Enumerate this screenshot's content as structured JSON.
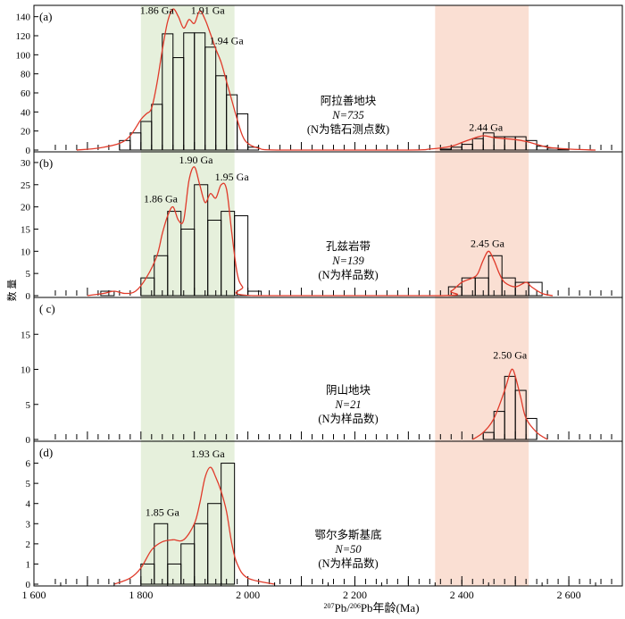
{
  "colors": {
    "green_band": "#e6f0dc",
    "pink_band": "#fadfd3",
    "kde_line": "#e03a2a",
    "bar_edge": "#000000"
  },
  "axes": {
    "xlabel": "207Pb/206Pb年龄(Ma)",
    "xlabel_parts": {
      "sup1": "207",
      "t1": "Pb/",
      "sup2": "206",
      "t2": "Pb年龄(Ma)"
    },
    "ylabel": "数 量",
    "xticks": [
      "1 600",
      "1 800",
      "2 000",
      "2 200",
      "2 400",
      "2 600"
    ]
  },
  "chart_data": [
    {
      "type": "bar",
      "panel": "(a)",
      "region": "阿拉善地块",
      "n_label": "N=735",
      "note": "(N为锆石测点数)",
      "bin_width": 20,
      "xlim": [
        1600,
        2700
      ],
      "ylim": [
        0,
        150
      ],
      "yticks": [
        0,
        20,
        40,
        60,
        80,
        100,
        120,
        140
      ],
      "bins": [
        [
          1760,
          10
        ],
        [
          1780,
          18
        ],
        [
          1800,
          30
        ],
        [
          1820,
          48
        ],
        [
          1840,
          122
        ],
        [
          1860,
          97
        ],
        [
          1880,
          123
        ],
        [
          1900,
          123
        ],
        [
          1920,
          108
        ],
        [
          1940,
          78
        ],
        [
          1960,
          58
        ],
        [
          1980,
          38
        ],
        [
          2000,
          3
        ],
        [
          2360,
          1
        ],
        [
          2380,
          3
        ],
        [
          2400,
          6
        ],
        [
          2420,
          12
        ],
        [
          2440,
          18
        ],
        [
          2460,
          14
        ],
        [
          2480,
          14
        ],
        [
          2500,
          14
        ],
        [
          2520,
          10
        ],
        [
          2540,
          4
        ],
        [
          2560,
          2
        ],
        [
          2580,
          1
        ]
      ],
      "peaks": [
        {
          "label": "1.86 Ga",
          "x": 1860,
          "y": 148
        },
        {
          "label": "1.91 Ga",
          "x": 1910,
          "y": 146
        },
        {
          "label": "1.94 Ga",
          "x": 1940,
          "y": 106
        },
        {
          "label": "2.44 Ga",
          "x": 2440,
          "y": 18
        }
      ],
      "peak_labels": [
        {
          "text": "1.86 Ga",
          "x": 1830,
          "y": 143
        },
        {
          "text": "1.91 Ga",
          "x": 1925,
          "y": 143
        },
        {
          "text": "1.94 Ga",
          "x": 1960,
          "y": 111
        },
        {
          "text": "2.44 Ga",
          "x": 2445,
          "y": 20
        }
      ],
      "kde": [
        [
          1680,
          0
        ],
        [
          1720,
          2
        ],
        [
          1760,
          7
        ],
        [
          1780,
          15
        ],
        [
          1800,
          32
        ],
        [
          1810,
          38
        ],
        [
          1820,
          44
        ],
        [
          1830,
          70
        ],
        [
          1840,
          105
        ],
        [
          1850,
          135
        ],
        [
          1860,
          148
        ],
        [
          1870,
          140
        ],
        [
          1880,
          128
        ],
        [
          1890,
          137
        ],
        [
          1900,
          133
        ],
        [
          1910,
          146
        ],
        [
          1920,
          137
        ],
        [
          1930,
          122
        ],
        [
          1940,
          106
        ],
        [
          1950,
          92
        ],
        [
          1960,
          72
        ],
        [
          1970,
          52
        ],
        [
          1980,
          32
        ],
        [
          1990,
          15
        ],
        [
          2000,
          7
        ],
        [
          2020,
          2
        ],
        [
          2060,
          0
        ],
        [
          2300,
          0
        ],
        [
          2340,
          1
        ],
        [
          2380,
          4
        ],
        [
          2400,
          8
        ],
        [
          2420,
          12
        ],
        [
          2440,
          15
        ],
        [
          2460,
          13
        ],
        [
          2480,
          12
        ],
        [
          2500,
          11
        ],
        [
          2520,
          9
        ],
        [
          2540,
          6
        ],
        [
          2560,
          3
        ],
        [
          2600,
          1
        ],
        [
          2650,
          0
        ]
      ]
    },
    {
      "type": "bar",
      "panel": "(b)",
      "region": "孔兹岩带",
      "n_label": "N=139",
      "note": "(N为样品数)",
      "bin_width": 25,
      "xlim": [
        1600,
        2700
      ],
      "ylim": [
        0,
        32
      ],
      "yticks": [
        0,
        5,
        10,
        15,
        20,
        25,
        30
      ],
      "bins": [
        [
          1725,
          1
        ],
        [
          1800,
          4
        ],
        [
          1825,
          9
        ],
        [
          1850,
          19
        ],
        [
          1875,
          15
        ],
        [
          1900,
          25
        ],
        [
          1925,
          17
        ],
        [
          1950,
          19
        ],
        [
          1975,
          18
        ],
        [
          2000,
          1
        ],
        [
          2375,
          2
        ],
        [
          2400,
          4
        ],
        [
          2425,
          4
        ],
        [
          2450,
          9
        ],
        [
          2475,
          4
        ],
        [
          2500,
          3
        ],
        [
          2525,
          3
        ]
      ],
      "peaks": [
        {
          "label": "1.86 Ga",
          "x": 1860,
          "y": 20
        },
        {
          "label": "1.90 Ga",
          "x": 1900,
          "y": 29
        },
        {
          "label": "1.95 Ga",
          "x": 1950,
          "y": 25
        },
        {
          "label": "2.45 Ga",
          "x": 2450,
          "y": 10
        }
      ],
      "peak_labels": [
        {
          "text": "1.86 Ga",
          "x": 1837,
          "y": 21
        },
        {
          "text": "1.90 Ga",
          "x": 1903,
          "y": 29.8
        },
        {
          "text": "1.95 Ga",
          "x": 1970,
          "y": 26
        },
        {
          "text": "2.45 Ga",
          "x": 2448,
          "y": 11
        }
      ],
      "kde": [
        [
          1700,
          0
        ],
        [
          1730,
          0.5
        ],
        [
          1750,
          1
        ],
        [
          1770,
          0.5
        ],
        [
          1790,
          1
        ],
        [
          1810,
          4
        ],
        [
          1830,
          9
        ],
        [
          1840,
          14
        ],
        [
          1850,
          18
        ],
        [
          1860,
          20
        ],
        [
          1870,
          17
        ],
        [
          1880,
          17
        ],
        [
          1890,
          26
        ],
        [
          1900,
          29
        ],
        [
          1910,
          25
        ],
        [
          1920,
          21
        ],
        [
          1930,
          23
        ],
        [
          1940,
          22
        ],
        [
          1950,
          25
        ],
        [
          1960,
          24
        ],
        [
          1970,
          14
        ],
        [
          1980,
          5
        ],
        [
          1990,
          2
        ],
        [
          2010,
          0
        ],
        [
          2360,
          0
        ],
        [
          2380,
          1
        ],
        [
          2400,
          3
        ],
        [
          2420,
          4
        ],
        [
          2430,
          5
        ],
        [
          2440,
          8
        ],
        [
          2450,
          10
        ],
        [
          2460,
          8
        ],
        [
          2470,
          5
        ],
        [
          2480,
          3
        ],
        [
          2500,
          2
        ],
        [
          2520,
          3
        ],
        [
          2530,
          2
        ],
        [
          2550,
          0.5
        ],
        [
          2570,
          0
        ]
      ]
    },
    {
      "type": "bar",
      "panel": "( c)",
      "region": "阴山地块",
      "n_label": "N=21",
      "note": "(N为样品数)",
      "bin_width": 20,
      "xlim": [
        1600,
        2700
      ],
      "ylim": [
        0,
        20
      ],
      "yticks": [
        0,
        5,
        10,
        15
      ],
      "bins": [
        [
          2440,
          1
        ],
        [
          2460,
          4
        ],
        [
          2480,
          9
        ],
        [
          2500,
          7
        ],
        [
          2520,
          3
        ]
      ],
      "peaks": [
        {
          "label": "2.50 Ga",
          "x": 2495,
          "y": 10
        }
      ],
      "peak_labels": [
        {
          "text": "2.50 Ga",
          "x": 2490,
          "y": 11.5
        }
      ],
      "kde": [
        [
          2420,
          0
        ],
        [
          2440,
          1
        ],
        [
          2460,
          3
        ],
        [
          2480,
          7
        ],
        [
          2490,
          9.5
        ],
        [
          2495,
          10
        ],
        [
          2500,
          9
        ],
        [
          2510,
          6
        ],
        [
          2520,
          3
        ],
        [
          2540,
          1
        ],
        [
          2560,
          0
        ]
      ]
    },
    {
      "type": "bar",
      "panel": "(d)",
      "region": "鄂尔多斯基底",
      "n_label": "N=50",
      "note": "(N为样品数)",
      "bin_width": 25,
      "xlim": [
        1600,
        2700
      ],
      "ylim": [
        0,
        7
      ],
      "yticks": [
        0,
        1,
        2,
        3,
        4,
        5,
        6
      ],
      "bins": [
        [
          1800,
          1
        ],
        [
          1825,
          3
        ],
        [
          1850,
          1
        ],
        [
          1875,
          2
        ],
        [
          1900,
          3
        ],
        [
          1925,
          4
        ],
        [
          1950,
          6
        ]
      ],
      "peaks": [
        {
          "label": "1.85 Ga",
          "x": 1855,
          "y": 2.2
        },
        {
          "label": "1.93 Ga",
          "x": 1930,
          "y": 6
        }
      ],
      "peak_labels": [
        {
          "text": "1.85 Ga",
          "x": 1840,
          "y": 3.4
        },
        {
          "text": "1.93 Ga",
          "x": 1925,
          "y": 6.3
        }
      ],
      "kde": [
        [
          1750,
          0
        ],
        [
          1780,
          0.3
        ],
        [
          1800,
          0.8
        ],
        [
          1820,
          1.7
        ],
        [
          1840,
          2.1
        ],
        [
          1860,
          2.2
        ],
        [
          1880,
          2.2
        ],
        [
          1900,
          3
        ],
        [
          1910,
          4
        ],
        [
          1920,
          5.3
        ],
        [
          1930,
          5.8
        ],
        [
          1940,
          5.3
        ],
        [
          1950,
          4.6
        ],
        [
          1960,
          3.6
        ],
        [
          1970,
          2
        ],
        [
          1980,
          1
        ],
        [
          2000,
          0.3
        ],
        [
          2050,
          0
        ]
      ]
    }
  ]
}
